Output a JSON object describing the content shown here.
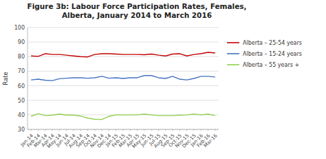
{
  "chart_data": {
    "type": "line",
    "title": "Figure 3b: Labour Force Participation Rates, Females,\nAlberta, January 2014 to March 2016",
    "y_label": "Rate",
    "categories": [
      "Jan-14",
      "Feb-14",
      "Mar-14",
      "Apr-14",
      "May-14",
      "Jun-14",
      "Jul-14",
      "Aug-14",
      "Sep-14",
      "Oct-14",
      "Nov-14",
      "Dec-14",
      "Jan-15",
      "Feb-15",
      "Mar-15",
      "Apr-15",
      "May-15",
      "Jun-15",
      "Jul-15",
      "Aug-15",
      "Sep-15",
      "Oct-15",
      "Nov-15",
      "Dec-15",
      "Jan-16",
      "Feb-16",
      "Mar-16"
    ],
    "series": [
      {
        "name": "Alberta – 25-54 years",
        "color": "#c00000",
        "values": [
          80.5,
          80.2,
          82.0,
          81.5,
          81.5,
          81.0,
          80.5,
          80.0,
          79.8,
          81.5,
          82.0,
          82.0,
          81.8,
          81.5,
          81.5,
          81.5,
          81.3,
          81.8,
          81.0,
          80.5,
          81.8,
          82.0,
          80.5,
          81.5,
          82.0,
          83.0,
          82.5
        ]
      },
      {
        "name": "Alberta – 15-24 years",
        "color": "#4472c4",
        "values": [
          64.0,
          64.5,
          63.8,
          63.5,
          64.8,
          65.2,
          65.5,
          65.5,
          65.2,
          65.5,
          66.5,
          65.2,
          65.5,
          65.0,
          65.5,
          65.5,
          67.0,
          67.0,
          65.5,
          65.0,
          66.5,
          64.5,
          64.0,
          65.0,
          66.5,
          66.5,
          66.0
        ]
      },
      {
        "name": "Alberta – 55 years +",
        "color": "#92d050",
        "values": [
          39.0,
          40.8,
          39.5,
          39.8,
          40.5,
          39.8,
          39.8,
          39.2,
          37.8,
          37.0,
          36.8,
          39.0,
          40.0,
          40.0,
          40.0,
          40.0,
          40.5,
          40.0,
          39.5,
          39.5,
          39.5,
          39.8,
          40.0,
          40.5,
          40.0,
          40.5,
          39.5
        ]
      }
    ],
    "ylim": [
      30,
      100
    ],
    "yticks": [
      30,
      40,
      50,
      60,
      70,
      80,
      90,
      100
    ],
    "grid": true,
    "legend": "right"
  }
}
